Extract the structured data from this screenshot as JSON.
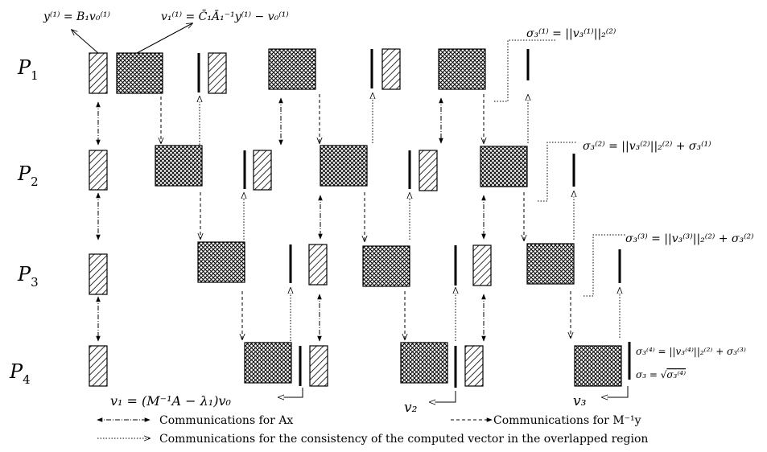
{
  "processors": [
    {
      "id": "P1",
      "label": "P",
      "sub": "1"
    },
    {
      "id": "P2",
      "label": "P",
      "sub": "2"
    },
    {
      "id": "P3",
      "label": "P",
      "sub": "3"
    },
    {
      "id": "P4",
      "label": "P",
      "sub": "4"
    }
  ],
  "top_annotations": {
    "y1": "y⁽¹⁾ = B₁v₀⁽¹⁾",
    "v1": "v₁⁽¹⁾ = C̄₁Ā₁⁻¹y⁽¹⁾ − v₀⁽¹⁾"
  },
  "sigma_annotations": {
    "s1": "σ₃⁽¹⁾ = ||v₃⁽¹⁾||₂⁽²⁾",
    "s2": "σ₃⁽²⁾ = ||v₃⁽²⁾||₂⁽²⁾ + σ₃⁽¹⁾",
    "s3": "σ₃⁽³⁾ = ||v₃⁽³⁾||₂⁽²⁾ + σ₃⁽²⁾",
    "s4a": "σ₃⁽⁴⁾ = ||v₃⁽⁴⁾||₂⁽²⁾ + σ₃⁽³⁾",
    "s4b_lhs": "σ₃ = ",
    "s4b_rad": "σ₃⁽⁴⁾"
  },
  "vector_labels": {
    "v1": "v₁ = (M⁻¹A − λ₁)v₀",
    "v2": "v₂",
    "v3": "v₃"
  },
  "legend": {
    "ax": "Communications for Ax",
    "my": "Communications for M⁻¹y",
    "cons": "Communications for the consistency of the computed vector in the overlapped region"
  }
}
